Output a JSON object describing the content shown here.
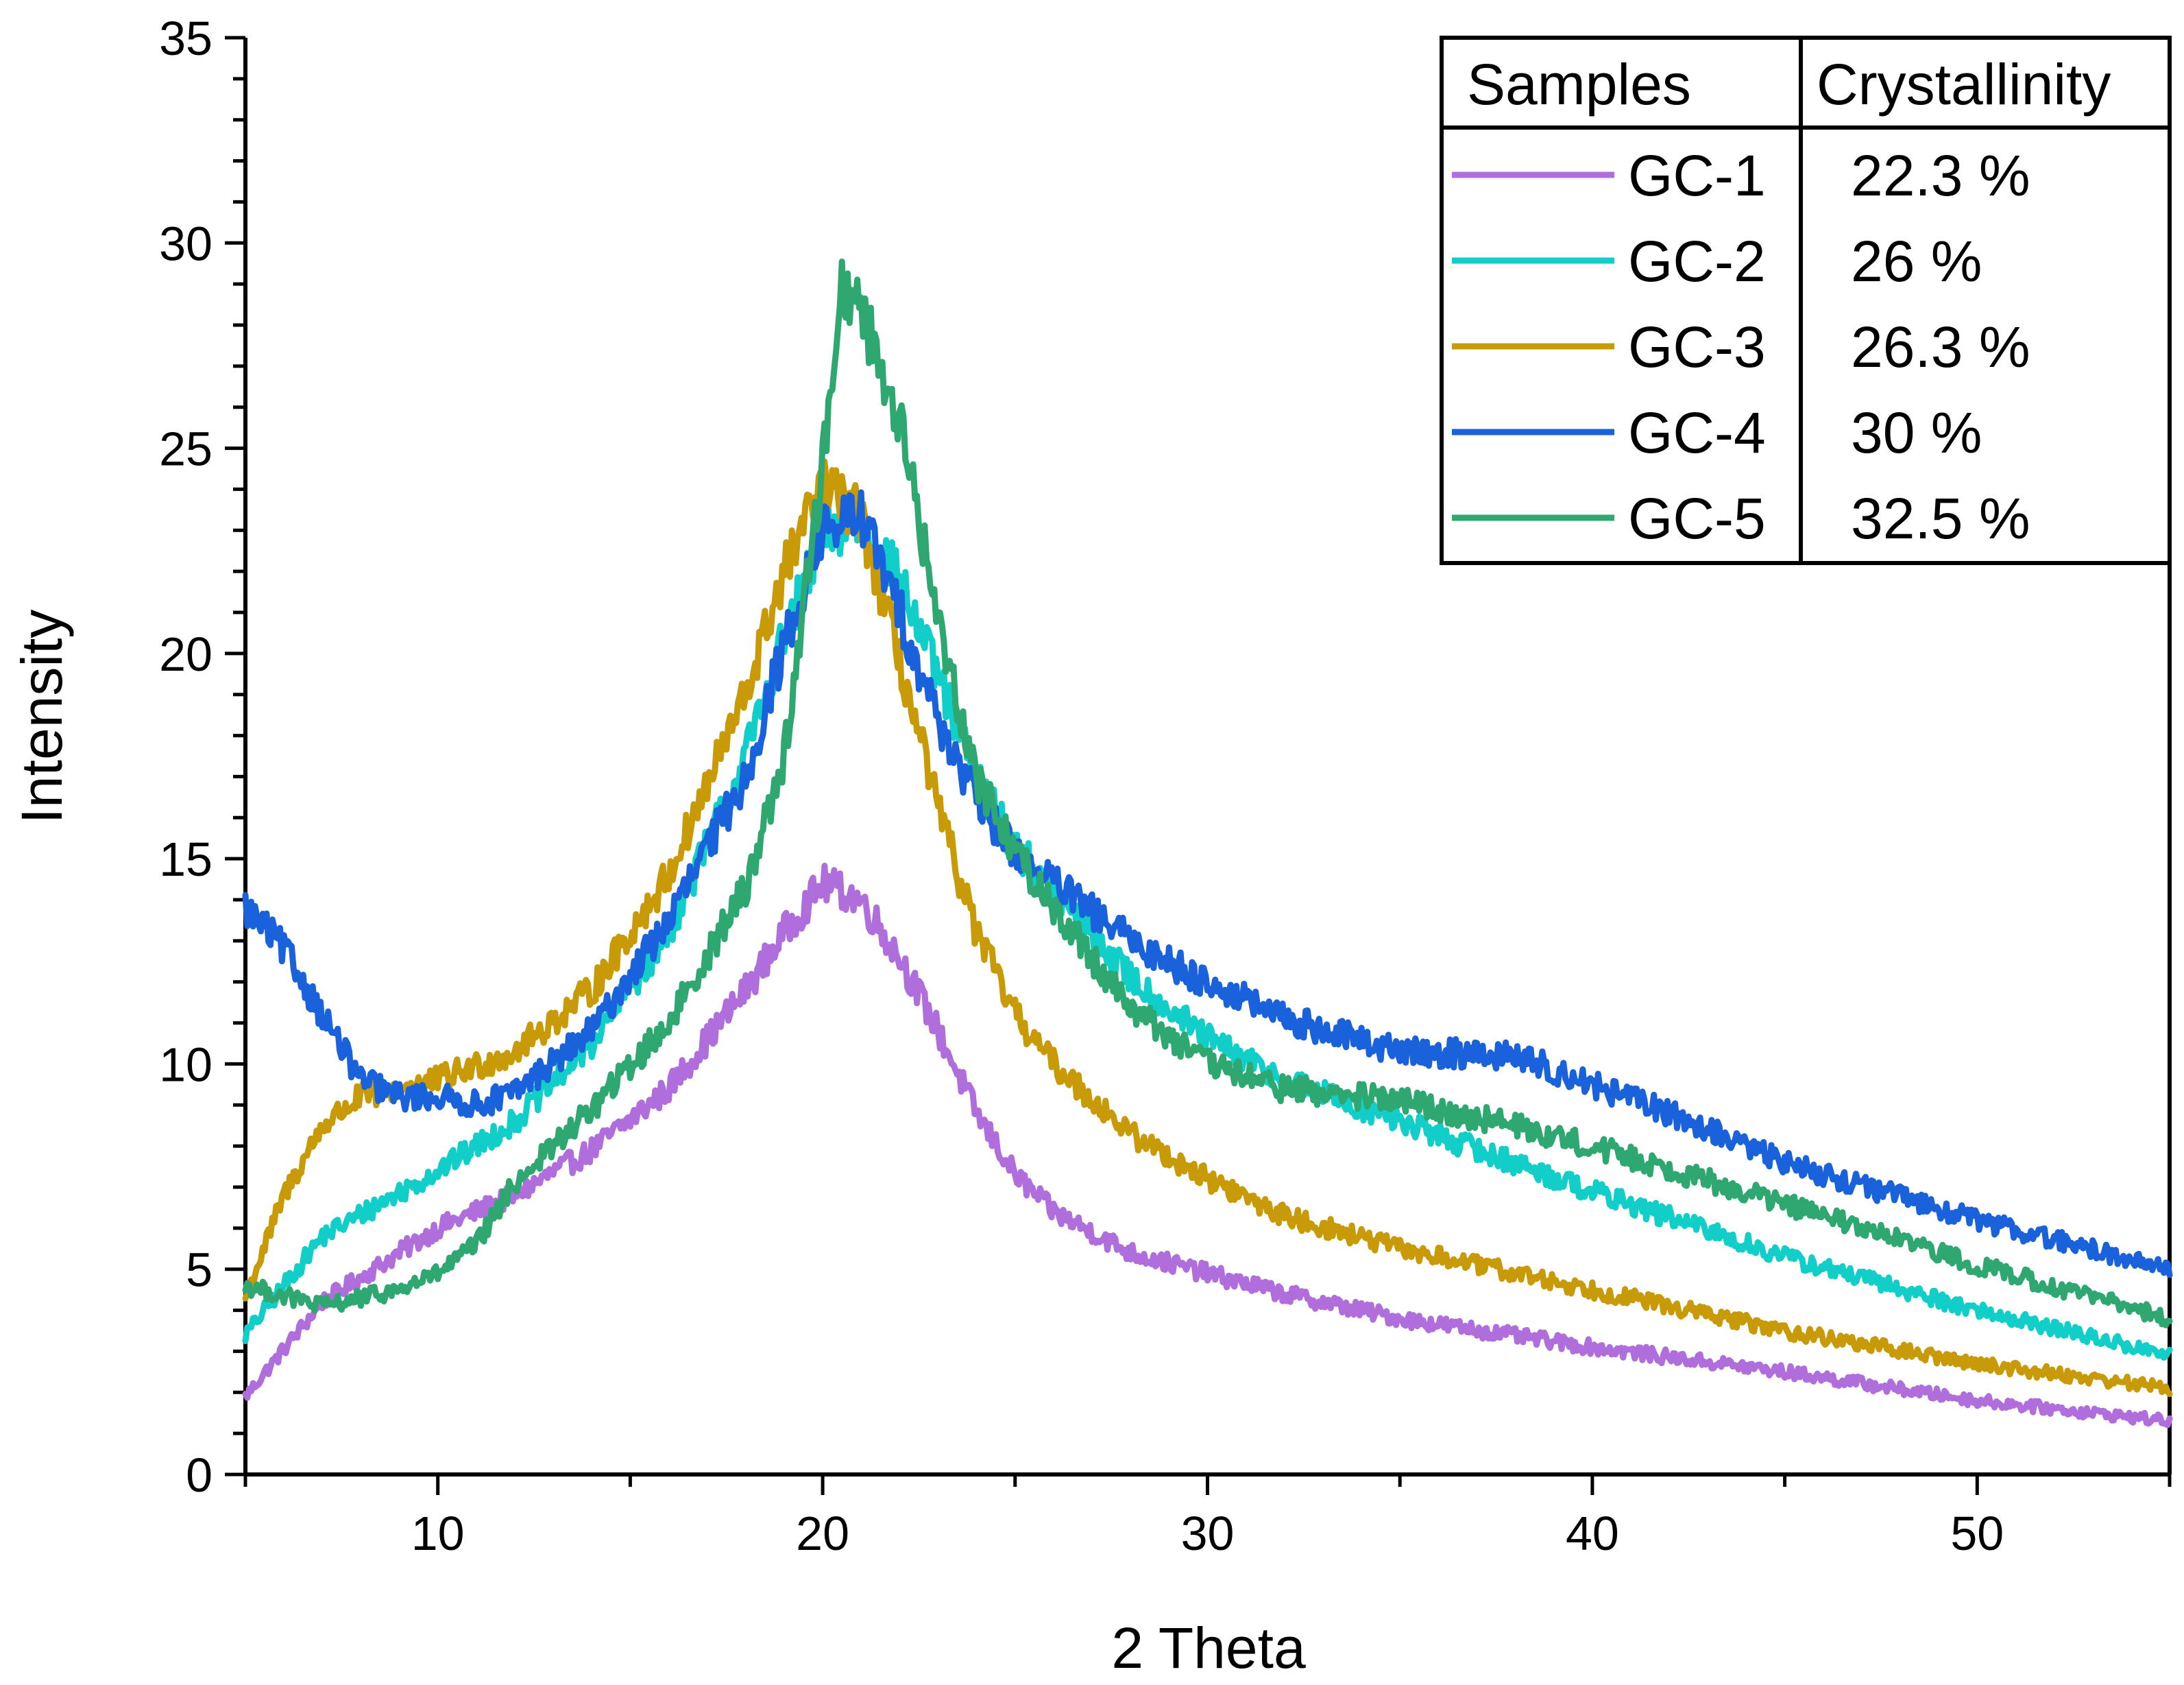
{
  "chart_data": {
    "type": "line",
    "title": "",
    "xlabel": "2 Theta",
    "ylabel": "Intensity",
    "xlim": [
      5,
      55
    ],
    "ylim": [
      0,
      35
    ],
    "x_ticks": [
      10,
      20,
      30,
      40,
      50
    ],
    "y_ticks": [
      0,
      5,
      10,
      15,
      20,
      25,
      30,
      35
    ],
    "legend_position": "top-right",
    "legend_headers": {
      "samples": "Samples",
      "crystallinity": "Crystallinity"
    },
    "series": [
      {
        "name": "GC-1",
        "crystallinity": "22.3 %",
        "color": "#b06edc",
        "x": [
          5,
          7,
          10,
          12,
          14,
          16,
          18,
          19,
          20,
          21,
          22,
          23,
          24,
          25,
          26,
          28,
          30,
          32,
          35,
          40,
          45,
          50,
          55
        ],
        "values": [
          1.9,
          4.2,
          6.0,
          6.8,
          7.9,
          9.4,
          11.8,
          13.2,
          14.4,
          14.0,
          12.6,
          10.8,
          8.8,
          7.3,
          6.4,
          5.4,
          4.9,
          4.4,
          3.8,
          3.1,
          2.5,
          1.8,
          1.3
        ]
      },
      {
        "name": "GC-2",
        "crystallinity": "26 %",
        "color": "#12cec8",
        "x": [
          5,
          7,
          10,
          12,
          14,
          16,
          18,
          19,
          20,
          21,
          22,
          23,
          24,
          25,
          26,
          28,
          30,
          32,
          35,
          40,
          45,
          50,
          55
        ],
        "values": [
          3.4,
          5.8,
          7.4,
          8.6,
          10.5,
          13.2,
          17.5,
          20.4,
          22.8,
          23.2,
          21.8,
          19.4,
          17.0,
          15.3,
          14.2,
          12.1,
          10.6,
          9.6,
          8.6,
          6.9,
          5.3,
          4.0,
          2.9
        ]
      },
      {
        "name": "GC-3",
        "crystallinity": "26.3 %",
        "color": "#c99a08",
        "x": [
          5,
          6,
          7,
          8,
          10,
          12,
          14,
          16,
          18,
          19,
          20,
          21,
          22,
          23,
          24,
          25,
          26,
          28,
          30,
          32,
          35,
          40,
          45,
          50,
          55
        ],
        "values": [
          4.3,
          6.8,
          8.5,
          9.2,
          9.6,
          10.3,
          11.8,
          14.6,
          19.0,
          22.0,
          24.1,
          23.3,
          19.8,
          16.2,
          13.2,
          11.2,
          10.0,
          8.3,
          7.2,
          6.3,
          5.5,
          4.5,
          3.5,
          2.7,
          2.1
        ]
      },
      {
        "name": "GC-4",
        "crystallinity": "30 %",
        "color": "#1a62dc",
        "x": [
          5,
          6,
          7,
          8,
          9,
          10,
          11,
          12,
          14,
          16,
          18,
          19,
          20,
          21,
          22,
          23,
          24,
          25,
          26,
          28,
          30,
          32,
          35,
          38,
          40,
          42,
          45,
          50,
          55
        ],
        "values": [
          13.8,
          12.8,
          11.2,
          9.6,
          9.2,
          9.2,
          9.0,
          9.3,
          10.8,
          13.5,
          17.0,
          20.2,
          23.0,
          23.4,
          21.0,
          18.4,
          16.4,
          15.2,
          14.4,
          13.0,
          12.0,
          11.1,
          10.3,
          10.2,
          9.5,
          8.8,
          7.6,
          6.2,
          5.0
        ]
      },
      {
        "name": "GC-5",
        "crystallinity": "32.5 %",
        "color": "#2ea870",
        "x": [
          5,
          7,
          9,
          10,
          11,
          12,
          14,
          16,
          18,
          19,
          20,
          20.5,
          21,
          22,
          23,
          24,
          25,
          26,
          28,
          30,
          32,
          35,
          38,
          40,
          45,
          50,
          55
        ],
        "values": [
          4.6,
          4.1,
          4.5,
          4.9,
          5.6,
          7.1,
          8.9,
          11.0,
          14.3,
          17.5,
          24.6,
          29.0,
          28.4,
          25.7,
          20.8,
          17.0,
          15.2,
          13.8,
          11.4,
          10.0,
          9.4,
          9.1,
          8.5,
          8.0,
          6.6,
          5.1,
          3.8
        ]
      }
    ]
  }
}
